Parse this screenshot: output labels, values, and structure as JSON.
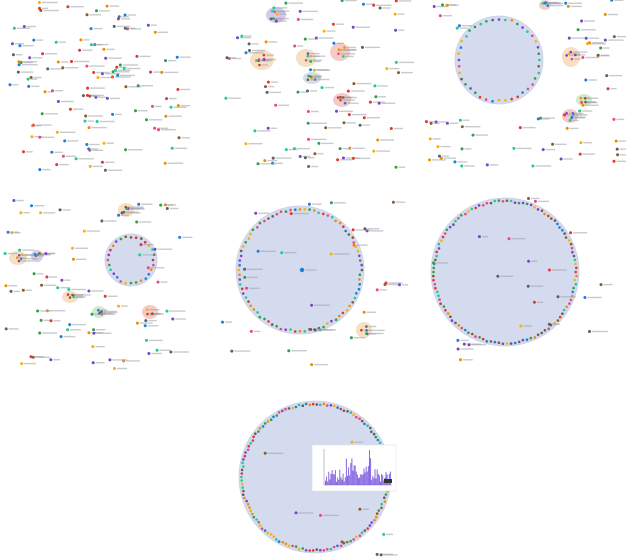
{
  "figure": {
    "panels": [
      {
        "id": "panel-1",
        "label": ""
      },
      {
        "id": "panel-2",
        "label": ""
      },
      {
        "id": "panel-3",
        "label": ""
      },
      {
        "id": "panel-4",
        "label": ""
      },
      {
        "id": "panel-5",
        "label": ""
      },
      {
        "id": "panel-6",
        "label": ""
      },
      {
        "id": "panel-7",
        "label": ""
      }
    ],
    "colors": {
      "community_fill": "#d5dbee",
      "community_stroke": "#c8cfe6",
      "cluster_purple": "#cdbfe6",
      "cluster_orange": "#f5d9b8",
      "cluster_red": "#f3c2bd",
      "cluster_green": "#c6e8c2",
      "cluster_blue": "#c9d7e8",
      "node_palette": [
        "#e0382e",
        "#7a43c9",
        "#2f9e44",
        "#f08c00",
        "#1c7ed6",
        "#e64980",
        "#5c5f66",
        "#20c997",
        "#fab005",
        "#8d5a2b"
      ]
    },
    "inset": {
      "type": "bar",
      "series_color": "#6741d9"
    }
  }
}
